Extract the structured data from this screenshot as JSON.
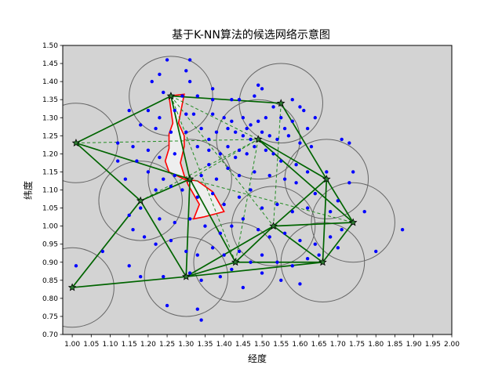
{
  "chart_data": {
    "type": "scatter",
    "title": "基于K-NN算法的候选网络示意图",
    "xlabel": "经度",
    "ylabel": "纬度",
    "xlim": [
      0.975,
      2.0
    ],
    "ylim": [
      0.7,
      1.5
    ],
    "xticks": [
      "1.00",
      "1.05",
      "1.10",
      "1.15",
      "1.20",
      "1.25",
      "1.30",
      "1.35",
      "1.40",
      "1.45",
      "1.50",
      "1.55",
      "1.60",
      "1.65",
      "1.70",
      "1.75",
      "1.80",
      "1.85",
      "1.90",
      "1.95",
      "2.00"
    ],
    "yticks": [
      "0.70",
      "0.75",
      "0.80",
      "0.85",
      "0.90",
      "0.95",
      "1.00",
      "1.05",
      "1.10",
      "1.15",
      "1.20",
      "1.25",
      "1.30",
      "1.35",
      "1.40",
      "1.45",
      "1.50"
    ],
    "background_color": "#d3d3d3",
    "colors": {
      "points": "#0000ff",
      "solid_edges": "#006400",
      "dashed_edges": "#228b22",
      "polygon": "#ff0000",
      "polygon_fill": "#eeeeee",
      "circles": "#666666",
      "stations": "#000000"
    },
    "circle_radius": 0.11,
    "stations": [
      {
        "x": 1.01,
        "y": 1.23
      },
      {
        "x": 1.0,
        "y": 0.83
      },
      {
        "x": 1.18,
        "y": 1.07
      },
      {
        "x": 1.26,
        "y": 1.36
      },
      {
        "x": 1.3,
        "y": 0.86
      },
      {
        "x": 1.31,
        "y": 1.13
      },
      {
        "x": 1.43,
        "y": 0.9
      },
      {
        "x": 1.49,
        "y": 1.24
      },
      {
        "x": 1.53,
        "y": 1.0
      },
      {
        "x": 1.55,
        "y": 1.34
      },
      {
        "x": 1.66,
        "y": 0.9
      },
      {
        "x": 1.67,
        "y": 1.13
      },
      {
        "x": 1.74,
        "y": 1.01
      }
    ],
    "solid_edges": [
      [
        0,
        3
      ],
      [
        0,
        5
      ],
      [
        0,
        2
      ],
      [
        2,
        1
      ],
      [
        1,
        4
      ],
      [
        2,
        5
      ],
      [
        2,
        4
      ],
      [
        3,
        5
      ],
      [
        3,
        9
      ],
      [
        5,
        4
      ],
      [
        4,
        6
      ],
      [
        4,
        8
      ],
      [
        4,
        10
      ],
      [
        6,
        8
      ],
      [
        6,
        10
      ],
      [
        8,
        10
      ],
      [
        8,
        11
      ],
      [
        8,
        12
      ],
      [
        10,
        12
      ],
      [
        11,
        12
      ],
      [
        11,
        10
      ],
      [
        9,
        11
      ],
      [
        7,
        11
      ],
      [
        7,
        12
      ],
      [
        5,
        6
      ]
    ],
    "dashed_edges": [
      [
        0,
        7
      ],
      [
        3,
        7
      ],
      [
        3,
        8
      ],
      [
        5,
        7
      ],
      [
        5,
        12
      ],
      [
        2,
        7
      ],
      [
        7,
        6
      ],
      [
        9,
        8
      ],
      [
        3,
        6
      ]
    ],
    "polygon": [
      [
        1.255,
        1.36
      ],
      [
        1.295,
        1.365
      ],
      [
        1.28,
        1.285
      ],
      [
        1.295,
        1.25
      ],
      [
        1.295,
        1.22
      ],
      [
        1.285,
        1.175
      ],
      [
        1.295,
        1.14
      ],
      [
        1.305,
        1.115
      ],
      [
        1.335,
        1.06
      ],
      [
        1.32,
        1.02
      ],
      [
        1.345,
        1.025
      ],
      [
        1.4,
        1.04
      ],
      [
        1.37,
        1.095
      ],
      [
        1.33,
        1.125
      ],
      [
        1.295,
        1.13
      ],
      [
        1.255,
        1.15
      ],
      [
        1.245,
        1.18
      ],
      [
        1.255,
        1.215
      ],
      [
        1.255,
        1.255
      ],
      [
        1.265,
        1.285
      ]
    ],
    "points": [
      [
        1.25,
        1.46
      ],
      [
        1.31,
        1.46
      ],
      [
        1.3,
        1.43
      ],
      [
        1.23,
        1.42
      ],
      [
        1.31,
        1.4
      ],
      [
        1.37,
        1.38
      ],
      [
        1.49,
        1.39
      ],
      [
        1.5,
        1.38
      ],
      [
        1.21,
        1.4
      ],
      [
        1.24,
        1.37
      ],
      [
        1.29,
        1.36
      ],
      [
        1.33,
        1.36
      ],
      [
        1.37,
        1.35
      ],
      [
        1.42,
        1.35
      ],
      [
        1.44,
        1.35
      ],
      [
        1.48,
        1.36
      ],
      [
        1.53,
        1.33
      ],
      [
        1.58,
        1.35
      ],
      [
        1.6,
        1.33
      ],
      [
        1.61,
        1.32
      ],
      [
        1.15,
        1.32
      ],
      [
        1.2,
        1.32
      ],
      [
        1.23,
        1.3
      ],
      [
        1.27,
        1.32
      ],
      [
        1.3,
        1.31
      ],
      [
        1.32,
        1.31
      ],
      [
        1.37,
        1.31
      ],
      [
        1.4,
        1.3
      ],
      [
        1.42,
        1.29
      ],
      [
        1.45,
        1.3
      ],
      [
        1.47,
        1.28
      ],
      [
        1.49,
        1.29
      ],
      [
        1.51,
        1.3
      ],
      [
        1.55,
        1.3
      ],
      [
        1.58,
        1.29
      ],
      [
        1.62,
        1.27
      ],
      [
        1.64,
        1.3
      ],
      [
        1.18,
        1.28
      ],
      [
        1.22,
        1.27
      ],
      [
        1.26,
        1.26
      ],
      [
        1.3,
        1.26
      ],
      [
        1.34,
        1.27
      ],
      [
        1.38,
        1.26
      ],
      [
        1.41,
        1.27
      ],
      [
        1.43,
        1.26
      ],
      [
        1.45,
        1.25
      ],
      [
        1.47,
        1.24
      ],
      [
        1.5,
        1.26
      ],
      [
        1.52,
        1.25
      ],
      [
        1.54,
        1.24
      ],
      [
        1.56,
        1.27
      ],
      [
        1.57,
        1.25
      ],
      [
        1.6,
        1.23
      ],
      [
        1.63,
        1.22
      ],
      [
        1.71,
        1.24
      ],
      [
        1.73,
        1.23
      ],
      [
        1.12,
        1.23
      ],
      [
        1.16,
        1.22
      ],
      [
        1.2,
        1.21
      ],
      [
        1.23,
        1.19
      ],
      [
        1.27,
        1.2
      ],
      [
        1.33,
        1.22
      ],
      [
        1.36,
        1.21
      ],
      [
        1.39,
        1.2
      ],
      [
        1.41,
        1.22
      ],
      [
        1.43,
        1.19
      ],
      [
        1.46,
        1.2
      ],
      [
        1.48,
        1.22
      ],
      [
        1.51,
        1.21
      ],
      [
        1.53,
        1.2
      ],
      [
        1.55,
        1.18
      ],
      [
        1.59,
        1.17
      ],
      [
        1.62,
        1.15
      ],
      [
        1.67,
        1.15
      ],
      [
        1.74,
        1.15
      ],
      [
        1.17,
        1.18
      ],
      [
        1.14,
        1.13
      ],
      [
        1.2,
        1.15
      ],
      [
        1.24,
        1.13
      ],
      [
        1.27,
        1.14
      ],
      [
        1.34,
        1.14
      ],
      [
        1.36,
        1.17
      ],
      [
        1.38,
        1.13
      ],
      [
        1.41,
        1.16
      ],
      [
        1.44,
        1.14
      ],
      [
        1.48,
        1.15
      ],
      [
        1.52,
        1.14
      ],
      [
        1.56,
        1.13
      ],
      [
        1.59,
        1.12
      ],
      [
        1.64,
        1.09
      ],
      [
        1.7,
        1.07
      ],
      [
        1.73,
        1.12
      ],
      [
        1.22,
        1.1
      ],
      [
        1.26,
        1.11
      ],
      [
        1.29,
        1.1
      ],
      [
        1.33,
        1.08
      ],
      [
        1.37,
        1.09
      ],
      [
        1.4,
        1.06
      ],
      [
        1.44,
        1.08
      ],
      [
        1.47,
        1.1
      ],
      [
        1.5,
        1.05
      ],
      [
        1.54,
        1.06
      ],
      [
        1.58,
        1.04
      ],
      [
        1.62,
        1.05
      ],
      [
        1.68,
        1.04
      ],
      [
        1.77,
        1.04
      ],
      [
        1.15,
        1.03
      ],
      [
        1.18,
        1.05
      ],
      [
        1.23,
        1.02
      ],
      [
        1.27,
        1.01
      ],
      [
        1.31,
        1.02
      ],
      [
        1.35,
        1.0
      ],
      [
        1.39,
        0.98
      ],
      [
        1.42,
        1.0
      ],
      [
        1.45,
        1.02
      ],
      [
        1.49,
        0.99
      ],
      [
        1.52,
        0.97
      ],
      [
        1.56,
        0.98
      ],
      [
        1.6,
        0.96
      ],
      [
        1.64,
        0.95
      ],
      [
        1.68,
        0.97
      ],
      [
        1.71,
        0.99
      ],
      [
        1.16,
        0.99
      ],
      [
        1.19,
        0.97
      ],
      [
        1.22,
        0.95
      ],
      [
        1.26,
        0.96
      ],
      [
        1.3,
        0.93
      ],
      [
        1.33,
        0.92
      ],
      [
        1.37,
        0.94
      ],
      [
        1.4,
        0.92
      ],
      [
        1.44,
        0.93
      ],
      [
        1.47,
        0.9
      ],
      [
        1.5,
        0.92
      ],
      [
        1.54,
        0.9
      ],
      [
        1.58,
        0.89
      ],
      [
        1.62,
        0.91
      ],
      [
        1.65,
        0.92
      ],
      [
        1.7,
        0.94
      ],
      [
        1.8,
        0.93
      ],
      [
        1.87,
        0.99
      ],
      [
        1.01,
        0.89
      ],
      [
        1.08,
        0.93
      ],
      [
        1.15,
        0.89
      ],
      [
        1.18,
        0.86
      ],
      [
        1.24,
        0.86
      ],
      [
        1.31,
        0.87
      ],
      [
        1.34,
        0.85
      ],
      [
        1.39,
        0.86
      ],
      [
        1.45,
        0.83
      ],
      [
        1.5,
        0.87
      ],
      [
        1.55,
        0.85
      ],
      [
        1.6,
        0.84
      ],
      [
        1.25,
        0.78
      ],
      [
        1.33,
        0.77
      ],
      [
        1.34,
        0.74
      ],
      [
        1.42,
        0.88
      ],
      [
        1.12,
        1.18
      ],
      [
        1.44,
        1.21
      ],
      [
        1.46,
        1.27
      ],
      [
        1.36,
        1.24
      ]
    ]
  }
}
